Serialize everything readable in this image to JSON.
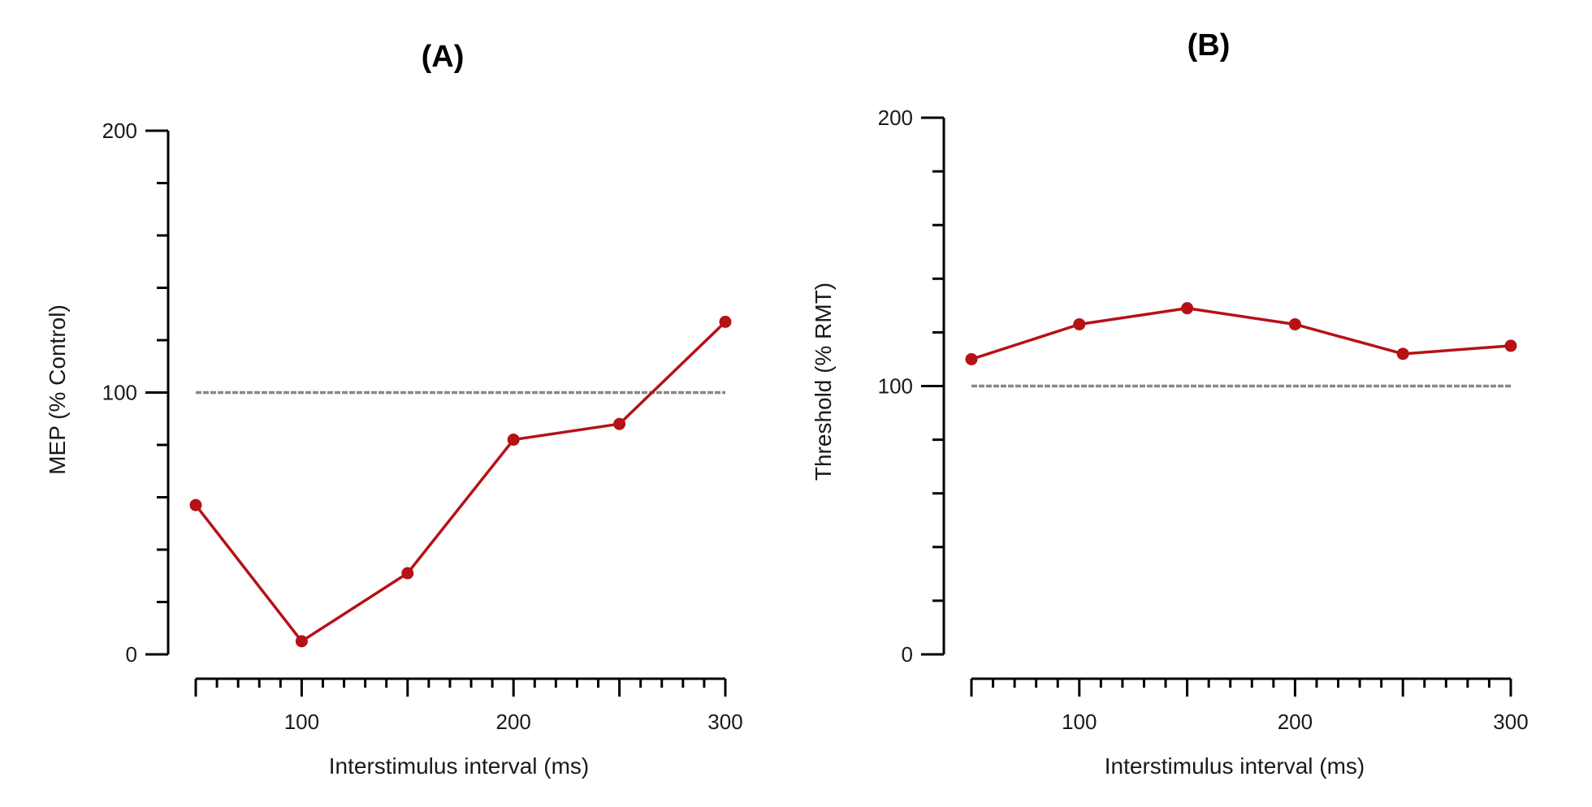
{
  "colors": {
    "series": "#b51216",
    "reference": "#888888",
    "axis": "#000000"
  },
  "chart_data": [
    {
      "type": "line",
      "title": "(A)",
      "xlabel": "Interstimulus interval (ms)",
      "ylabel": "MEP (% Control)",
      "xlim": [
        50,
        300
      ],
      "ylim": [
        0,
        200
      ],
      "x_ticks": [
        100,
        200,
        300
      ],
      "x_tick_labels": [
        "100",
        "200",
        "300"
      ],
      "y_ticks": [
        0,
        100,
        200
      ],
      "y_tick_labels": [
        "0",
        "100",
        "200"
      ],
      "series": [
        {
          "name": "MEP",
          "x": [
            50,
            100,
            150,
            200,
            250,
            300
          ],
          "values": [
            57,
            5,
            31,
            82,
            88,
            127
          ]
        }
      ],
      "reference_line": {
        "y": 100,
        "style": "dashed"
      }
    },
    {
      "type": "line",
      "title": "(B)",
      "xlabel": "Interstimulus interval (ms)",
      "ylabel": "Threshold (% RMT)",
      "xlim": [
        50,
        300
      ],
      "ylim": [
        0,
        200
      ],
      "x_ticks": [
        100,
        200,
        300
      ],
      "x_tick_labels": [
        "100",
        "200",
        "300"
      ],
      "y_ticks": [
        0,
        100,
        200
      ],
      "y_tick_labels": [
        "0",
        "100",
        "200"
      ],
      "series": [
        {
          "name": "Threshold",
          "x": [
            50,
            100,
            150,
            200,
            250,
            300
          ],
          "values": [
            110,
            123,
            129,
            123,
            112,
            115
          ]
        }
      ],
      "reference_line": {
        "y": 100,
        "style": "dashed"
      }
    }
  ]
}
